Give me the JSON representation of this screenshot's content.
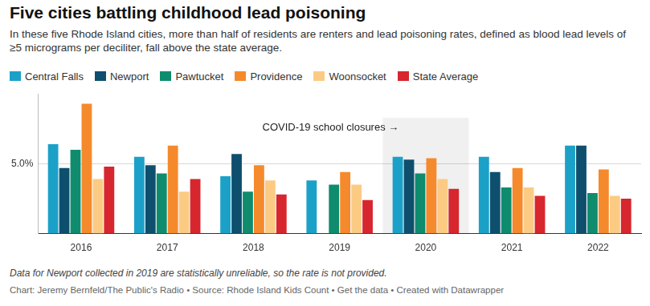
{
  "chart_data": {
    "type": "bar",
    "title": "Five cities battling childhood lead poisoning",
    "subtitle": "In these five Rhode Island cities, more than half of residents are renters and lead poisoning rates, defined as blood lead levels of ≥5 micrograms per deciliter, fall above the state average.",
    "categories": [
      "2016",
      "2017",
      "2018",
      "2019",
      "2020",
      "2021",
      "2022"
    ],
    "series": [
      {
        "name": "Central Falls",
        "color": "#1ba1c8",
        "values": [
          6.4,
          5.5,
          4.1,
          3.8,
          5.5,
          5.5,
          6.3
        ]
      },
      {
        "name": "Newport",
        "color": "#0e4f6e",
        "values": [
          4.7,
          4.9,
          5.7,
          null,
          5.3,
          4.4,
          6.3
        ]
      },
      {
        "name": "Pawtucket",
        "color": "#0f8c6e",
        "values": [
          6.0,
          4.3,
          3.0,
          3.5,
          4.3,
          3.3,
          2.9
        ]
      },
      {
        "name": "Providence",
        "color": "#f58a2c",
        "values": [
          9.3,
          6.3,
          4.9,
          4.4,
          5.4,
          4.7,
          4.6
        ]
      },
      {
        "name": "Woonsocket",
        "color": "#fbcb84",
        "values": [
          3.9,
          3.0,
          3.8,
          3.5,
          3.9,
          3.3,
          2.7
        ]
      },
      {
        "name": "State Average",
        "color": "#d7262e",
        "values": [
          4.8,
          3.9,
          2.8,
          2.4,
          3.2,
          2.7,
          2.5
        ]
      }
    ],
    "ylim": [
      0,
      10
    ],
    "yticks": [
      {
        "value": 5,
        "label": "5.0%"
      }
    ],
    "grid": true,
    "legend": "top-left",
    "annotations": [
      {
        "text": "COVID-19 school closures →",
        "x": "2020"
      }
    ],
    "note": "Data for Newport collected in 2019 are statistically unreliable, so the rate is not provided.",
    "source": "Chart: Jeremy Bernfeld/The Public's Radio • Source: Rhode Island Kids Count • Get the data • Created with Datawrapper"
  }
}
